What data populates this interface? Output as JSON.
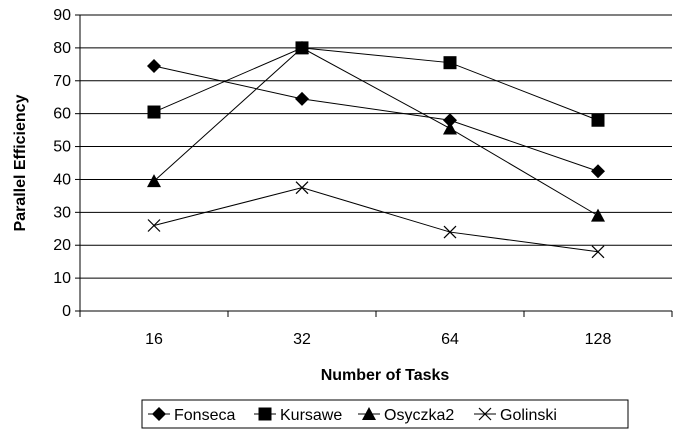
{
  "chart_data": {
    "type": "line",
    "title": "",
    "xlabel": "Number of Tasks",
    "ylabel": "Parallel Efficiency",
    "categories": [
      "16",
      "32",
      "64",
      "128"
    ],
    "ylim": [
      0,
      90
    ],
    "yticks": [
      0,
      10,
      20,
      30,
      40,
      50,
      60,
      70,
      80,
      90
    ],
    "grid": "horizontal",
    "legend_position": "bottom",
    "series": [
      {
        "name": "Fonseca",
        "marker": "diamond",
        "values": [
          74.5,
          64.5,
          58,
          42.5
        ]
      },
      {
        "name": "Kursawe",
        "marker": "square",
        "values": [
          60.5,
          80,
          75.5,
          58
        ]
      },
      {
        "name": "Osyczka2",
        "marker": "triangle",
        "values": [
          39.5,
          80,
          55.5,
          29
        ]
      },
      {
        "name": "Golinski",
        "marker": "x",
        "values": [
          26,
          37.5,
          24,
          18
        ]
      }
    ]
  }
}
